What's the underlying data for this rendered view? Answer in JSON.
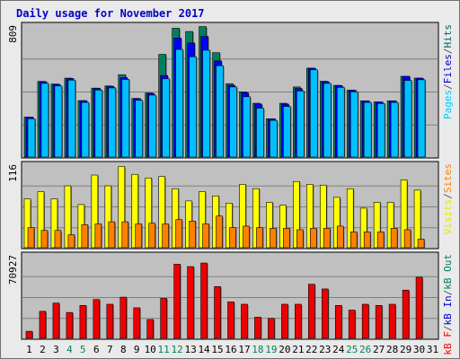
{
  "chart_data": {
    "type": "bar",
    "title": "Daily usage for November 2017",
    "x": [
      "1",
      "2",
      "3",
      "4",
      "5",
      "6",
      "7",
      "8",
      "9",
      "10",
      "11",
      "12",
      "13",
      "14",
      "15",
      "16",
      "17",
      "18",
      "19",
      "20",
      "21",
      "22",
      "23",
      "24",
      "25",
      "26",
      "27",
      "28",
      "29",
      "30",
      "31"
    ],
    "weekend_days": [
      "4",
      "5",
      "11",
      "12",
      "18",
      "19",
      "25",
      "26"
    ],
    "panels": [
      {
        "id": "hits",
        "max_label": "809",
        "ylim": [
          0,
          809
        ],
        "labels": [
          "Pages",
          "/",
          "Files",
          "/",
          "Hits"
        ],
        "label_colors": [
          "#00ccff",
          "#555555",
          "#0000cc",
          "#555555",
          "#006666"
        ],
        "series": [
          {
            "name": "Hits",
            "color": "#008060",
            "values": [
              245,
              464,
              448,
              484,
              346,
              423,
              436,
              505,
              360,
              393,
              630,
              790,
              770,
              800,
              640,
              450,
              400,
              330,
              235,
              330,
              430,
              545,
              465,
              440,
              410,
              345,
              338,
              345,
              495,
              484,
              0
            ]
          },
          {
            "name": "Files",
            "color": "#0000ff",
            "values": [
              245,
              462,
              446,
              482,
              346,
              421,
              434,
              487,
              358,
              390,
              500,
              730,
              700,
              740,
              590,
              440,
              395,
              325,
              235,
              325,
              420,
              545,
              462,
              438,
              410,
              345,
              338,
              345,
              495,
              484,
              0
            ]
          },
          {
            "name": "Pages",
            "color": "#00bfff",
            "values": [
              235,
              452,
              436,
              472,
              335,
              411,
              424,
              476,
              348,
              380,
              480,
              660,
              615,
              655,
              560,
              430,
              370,
              300,
              225,
              310,
              405,
              535,
              452,
              427,
              400,
              335,
              328,
              335,
              470,
              474,
              0
            ]
          }
        ]
      },
      {
        "id": "visits",
        "max_label": "116",
        "ylim": [
          0,
          116
        ],
        "labels": [
          "Visits",
          "/",
          "Sites"
        ],
        "label_colors": [
          "#e6e600",
          "#555555",
          "#ff8000"
        ],
        "series": [
          {
            "name": "Visits",
            "color": "#ffff00",
            "values": [
              68,
              78,
              68,
              86,
              60,
              101,
              86,
              113,
              102,
              97,
              99,
              82,
              65,
              78,
              72,
              62,
              88,
              82,
              63,
              59,
              92,
              88,
              87,
              70,
              82,
              55,
              63,
              63,
              94,
              80,
              0
            ]
          },
          {
            "name": "Sites",
            "color": "#ff8000",
            "values": [
              28,
              24,
              24,
              18,
              32,
              33,
              36,
              36,
              33,
              34,
              33,
              39,
              37,
              33,
              44,
              28,
              30,
              28,
              27,
              27,
              25,
              27,
              27,
              30,
              22,
              22,
              22,
              27,
              25,
              12,
              0
            ]
          }
        ]
      },
      {
        "id": "kbytes",
        "max_label": "70927",
        "ylim": [
          0,
          70927
        ],
        "labels": [
          "kB F",
          "/",
          "kB In",
          "/",
          "kB Out"
        ],
        "label_colors": [
          "#ff0000",
          "#555555",
          "#0000cc",
          "#555555",
          "#008060"
        ],
        "series": [
          {
            "name": "kB F",
            "color": "#ee0000",
            "values": [
              6000,
              23000,
              30000,
              22000,
              28000,
              33000,
              29000,
              35000,
              26000,
              16000,
              34000,
              63000,
              61000,
              64000,
              44000,
              31000,
              29000,
              18000,
              17000,
              29000,
              29000,
              46000,
              42000,
              28000,
              24000,
              29000,
              28000,
              29000,
              41000,
              52000,
              0
            ]
          }
        ]
      }
    ]
  }
}
